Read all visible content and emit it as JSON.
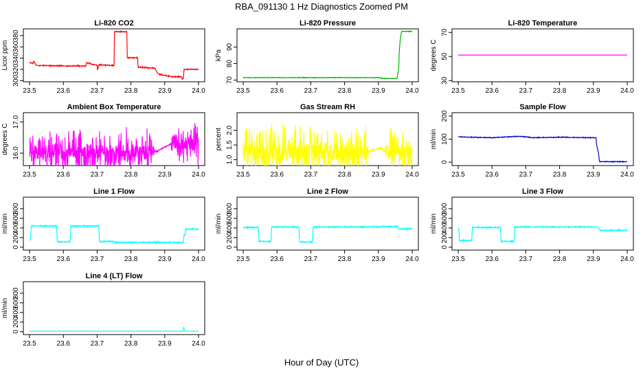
{
  "figure": {
    "title": "RBA_091130  1 Hz Diagnostics Zoomed PM",
    "xlabel": "Hour of Day (UTC)"
  },
  "chart_data": [
    {
      "type": "line",
      "title": "Li-820 CO2",
      "ylabel": "Licor ppm",
      "color": "#ff0000",
      "xlim": [
        23.5,
        24.0
      ],
      "ylim": [
        298,
        392
      ],
      "xticks": [
        23.5,
        23.6,
        23.7,
        23.8,
        23.9,
        24.0
      ],
      "xtick_labels": [
        "23.5",
        "23.6",
        "23.7",
        "23.8",
        "23.9",
        "24.0"
      ],
      "yticks": [
        300,
        320,
        340,
        360,
        380
      ],
      "ytick_labels": [
        "300",
        "320",
        "340",
        "360",
        "380"
      ],
      "noise": 1.2,
      "x": [
        23.5,
        23.51,
        23.512,
        23.52,
        23.6,
        23.667,
        23.668,
        23.7,
        23.701,
        23.705,
        23.75,
        23.7505,
        23.751,
        23.788,
        23.789,
        23.82,
        23.821,
        23.87,
        23.88,
        23.91,
        23.93,
        23.95,
        23.951,
        23.955,
        23.957,
        24.0
      ],
      "y": [
        333,
        330,
        335,
        327,
        326,
        326,
        332,
        327,
        318,
        328,
        327,
        330,
        387,
        387,
        341,
        340,
        324,
        322,
        312,
        308,
        307,
        307,
        302,
        304,
        320,
        320
      ]
    },
    {
      "type": "line",
      "title": "Li-820 Pressure",
      "ylabel": "kPa",
      "color": "#00b000",
      "xlim": [
        23.5,
        24.0
      ],
      "ylim": [
        69,
        101
      ],
      "xticks": [
        23.5,
        23.6,
        23.7,
        23.8,
        23.9,
        24.0
      ],
      "xtick_labels": [
        "23.5",
        "23.6",
        "23.7",
        "23.8",
        "23.9",
        "24.0"
      ],
      "yticks": [
        70,
        80,
        90
      ],
      "ytick_labels": [
        "70",
        "80",
        "90"
      ],
      "noise": 0.2,
      "x": [
        23.5,
        23.905,
        23.91,
        23.955,
        23.96,
        23.962,
        23.965,
        23.968,
        23.97,
        24.0
      ],
      "y": [
        71.5,
        71.5,
        71,
        71,
        77,
        88,
        95,
        99,
        99.5,
        99.5
      ]
    },
    {
      "type": "line",
      "title": "Li-820 Temperature",
      "ylabel": "degrees C",
      "color": "#ff00ff",
      "xlim": [
        23.5,
        24.0
      ],
      "ylim": [
        29,
        73
      ],
      "xticks": [
        23.5,
        23.6,
        23.7,
        23.8,
        23.9,
        24.0
      ],
      "xtick_labels": [
        "23.5",
        "23.6",
        "23.7",
        "23.8",
        "23.9",
        "24.0"
      ],
      "yticks": [
        30,
        50,
        70
      ],
      "ytick_labels": [
        "30",
        "50",
        "70"
      ],
      "noise": 0,
      "x": [
        23.5,
        24.0
      ],
      "y": [
        51.2,
        51.2
      ]
    },
    {
      "type": "line",
      "title": "Ambient Box Temperature",
      "ylabel": "degrees C",
      "color": "#ff00ff",
      "xlim": [
        23.5,
        24.0
      ],
      "ylim": [
        15.6,
        17.3
      ],
      "xticks": [
        23.5,
        23.6,
        23.7,
        23.8,
        23.9,
        24.0
      ],
      "xtick_labels": [
        "23.5",
        "23.6",
        "23.7",
        "23.8",
        "23.9",
        "24.0"
      ],
      "yticks": [
        16.0,
        17.0
      ],
      "ytick_labels": [
        "16.0",
        "17.0"
      ],
      "noise": 0.7,
      "x": [
        23.5,
        23.87,
        23.875,
        23.92,
        23.925,
        24.0
      ],
      "y": [
        16.05,
        16.05,
        16.05,
        16.3,
        16.3,
        16.3
      ]
    },
    {
      "type": "line",
      "title": "Gas Stream RH",
      "ylabel": "percent",
      "color": "#ffff00",
      "xlim": [
        23.5,
        24.0
      ],
      "ylim": [
        0.8,
        2.6
      ],
      "xticks": [
        23.5,
        23.6,
        23.7,
        23.8,
        23.9,
        24.0
      ],
      "xtick_labels": [
        "23.5",
        "23.6",
        "23.7",
        "23.8",
        "23.9",
        "24.0"
      ],
      "yticks": [
        1.0,
        1.5,
        2.0
      ],
      "ytick_labels": [
        "1.0",
        "1.5",
        "2.0"
      ],
      "noise": 0.9,
      "x": [
        23.5,
        23.87,
        23.875,
        23.91,
        23.915,
        24.0
      ],
      "y": [
        1.25,
        1.25,
        1.3,
        1.4,
        1.3,
        1.3
      ]
    },
    {
      "type": "line",
      "title": "Sample Flow",
      "ylabel": "ml/min",
      "color": "#0000cc",
      "xlim": [
        23.5,
        24.0
      ],
      "ylim": [
        -15,
        215
      ],
      "xticks": [
        23.5,
        23.6,
        23.7,
        23.8,
        23.9,
        24.0
      ],
      "xtick_labels": [
        "23.5",
        "23.6",
        "23.7",
        "23.8",
        "23.9",
        "24.0"
      ],
      "yticks": [
        0,
        100,
        200
      ],
      "ytick_labels": [
        "0",
        "100",
        "200"
      ],
      "noise": 2,
      "x": [
        23.5,
        23.6,
        23.68,
        23.7,
        23.72,
        23.8,
        23.908,
        23.909,
        23.915,
        23.918,
        24.0
      ],
      "y": [
        110,
        106,
        112,
        110,
        106,
        108,
        106,
        80,
        40,
        2,
        2
      ]
    },
    {
      "type": "line",
      "title": "Line 1 Flow",
      "ylabel": "ml/min",
      "color": "#00ffff",
      "xlim": [
        23.5,
        24.0
      ],
      "ylim": [
        -60,
        1040
      ],
      "xticks": [
        23.5,
        23.6,
        23.7,
        23.8,
        23.9,
        24.0
      ],
      "xtick_labels": [
        "23.5",
        "23.6",
        "23.7",
        "23.8",
        "23.9",
        "24.0"
      ],
      "yticks": [
        0,
        200,
        400,
        600,
        800
      ],
      "ytick_labels": [
        "0",
        "200",
        "400",
        "600",
        "800"
      ],
      "noise": 15,
      "x": [
        23.5,
        23.503,
        23.505,
        23.58,
        23.582,
        23.62,
        23.622,
        23.705,
        23.707,
        23.75,
        23.752,
        23.955,
        23.957,
        23.96,
        23.962,
        24.0
      ],
      "y": [
        150,
        150,
        440,
        440,
        110,
        110,
        440,
        440,
        120,
        120,
        100,
        100,
        250,
        250,
        380,
        380
      ]
    },
    {
      "type": "line",
      "title": "Line 2 Flow",
      "ylabel": "ml/min",
      "color": "#00ffff",
      "xlim": [
        23.5,
        24.0
      ],
      "ylim": [
        -60,
        1040
      ],
      "xticks": [
        23.5,
        23.6,
        23.7,
        23.8,
        23.9,
        24.0
      ],
      "xtick_labels": [
        "23.5",
        "23.6",
        "23.7",
        "23.8",
        "23.9",
        "24.0"
      ],
      "yticks": [
        0,
        200,
        400,
        600,
        800
      ],
      "ytick_labels": [
        "0",
        "200",
        "400",
        "600",
        "800"
      ],
      "noise": 15,
      "x": [
        23.5,
        23.545,
        23.547,
        23.582,
        23.584,
        23.665,
        23.667,
        23.705,
        23.707,
        23.87,
        23.93,
        23.955,
        23.96,
        24.0
      ],
      "y": [
        410,
        410,
        120,
        120,
        420,
        420,
        110,
        110,
        420,
        420,
        430,
        430,
        380,
        380
      ]
    },
    {
      "type": "line",
      "title": "Line 3 Flow",
      "ylabel": "ml/min",
      "color": "#00ffff",
      "xlim": [
        23.5,
        24.0
      ],
      "ylim": [
        -60,
        1040
      ],
      "xticks": [
        23.5,
        23.6,
        23.7,
        23.8,
        23.9,
        24.0
      ],
      "xtick_labels": [
        "23.5",
        "23.6",
        "23.7",
        "23.8",
        "23.9",
        "24.0"
      ],
      "yticks": [
        0,
        200,
        400,
        600,
        800
      ],
      "ytick_labels": [
        "0",
        "200",
        "400",
        "600",
        "800"
      ],
      "noise": 15,
      "x": [
        23.5,
        23.502,
        23.504,
        23.54,
        23.542,
        23.625,
        23.627,
        23.665,
        23.667,
        23.87,
        23.91,
        23.915,
        23.92,
        24.0
      ],
      "y": [
        380,
        380,
        140,
        140,
        410,
        410,
        120,
        120,
        420,
        420,
        420,
        400,
        350,
        350
      ]
    },
    {
      "type": "line",
      "title": "Line 4 (LT) Flow",
      "ylabel": "ml/min",
      "color": "#00ffff",
      "xlim": [
        23.5,
        24.0
      ],
      "ylim": [
        -60,
        1040
      ],
      "xticks": [
        23.5,
        23.6,
        23.7,
        23.8,
        23.9,
        24.0
      ],
      "xtick_labels": [
        "23.5",
        "23.6",
        "23.7",
        "23.8",
        "23.9",
        "24.0"
      ],
      "yticks": [
        0,
        200,
        400,
        600,
        800
      ],
      "ytick_labels": [
        "0",
        "200",
        "400",
        "600",
        "800"
      ],
      "noise": 3,
      "x": [
        23.5,
        23.955,
        23.956,
        23.958,
        23.96,
        24.0
      ],
      "y": [
        10,
        10,
        100,
        50,
        10,
        10
      ]
    }
  ]
}
